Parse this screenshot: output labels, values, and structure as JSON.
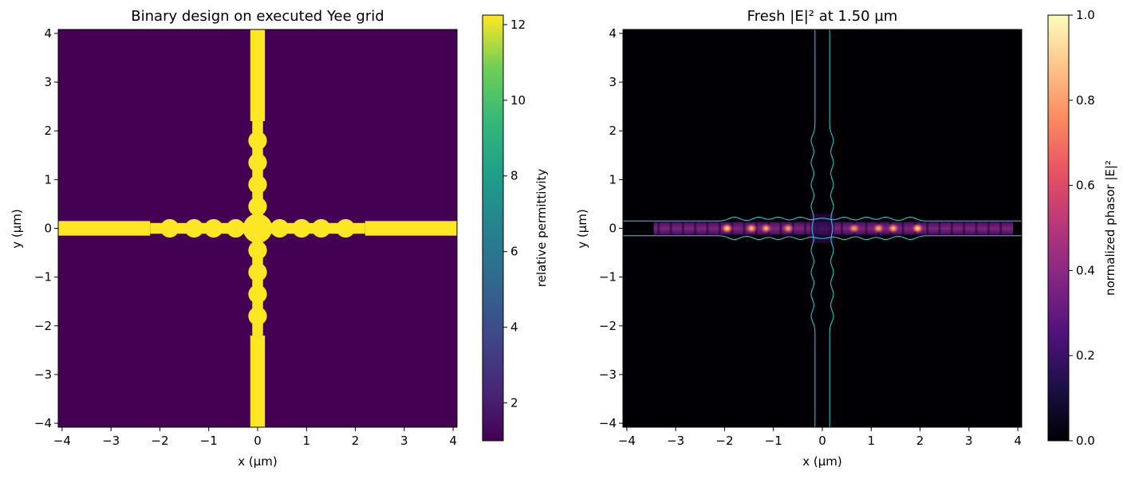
{
  "chart_data": [
    {
      "type": "heatmap",
      "title": "Binary design on executed Yee grid",
      "xlabel": "x (µm)",
      "ylabel": "y (µm)",
      "xlim": [
        -4.08,
        4.08
      ],
      "ylim": [
        -4.08,
        4.08
      ],
      "xticks": [
        -4,
        -3,
        -2,
        -1,
        0,
        1,
        2,
        3,
        4
      ],
      "yticks": [
        -4,
        -3,
        -2,
        -1,
        0,
        1,
        2,
        3,
        4
      ],
      "background_color": "#440154",
      "feature_color": "#fde725",
      "colorbar": {
        "label": "relative permittivity",
        "range": [
          1.0,
          12.25
        ],
        "ticks": [
          2,
          4,
          6,
          8,
          10,
          12
        ],
        "colormap": "viridis"
      },
      "structure": {
        "horizontal_bus_halfwidth": 0.15,
        "vertical_bus_halfwidth": 0.15,
        "straight_end": 2.2,
        "bumps_x": [
          -1.8,
          -1.3,
          -0.9,
          -0.45,
          0.45,
          0.9,
          1.3,
          1.8
        ],
        "bumps_y": [
          -1.8,
          -1.35,
          -0.9,
          -0.45,
          0.45,
          0.9,
          1.35,
          1.8
        ]
      }
    },
    {
      "type": "heatmap",
      "title": "Fresh |E|² at 1.50 µm",
      "xlabel": "x (µm)",
      "ylabel": "y (µm)",
      "xlim": [
        -4.08,
        4.08
      ],
      "ylim": [
        -4.08,
        4.08
      ],
      "xticks": [
        -4,
        -3,
        -2,
        -1,
        0,
        1,
        2,
        3,
        4
      ],
      "yticks": [
        -4,
        -3,
        -2,
        -1,
        0,
        1,
        2,
        3,
        4
      ],
      "background_color": "#000004",
      "outline_color": "#2fd3d3",
      "colorbar": {
        "label": "normalized phasor |E|²",
        "range": [
          0.0,
          1.0
        ],
        "ticks": [
          "0.0",
          "0.2",
          "0.4",
          "0.6",
          "0.8",
          "1.0"
        ],
        "colormap": "magma"
      },
      "field_band": {
        "x_range": [
          -3.45,
          3.9
        ],
        "y_halfwidth": 0.13
      },
      "hotspots": [
        {
          "x": -1.95,
          "intensity": 1.0
        },
        {
          "x": -1.45,
          "intensity": 0.85
        },
        {
          "x": -1.15,
          "intensity": 0.8
        },
        {
          "x": -0.7,
          "intensity": 0.75
        },
        {
          "x": 0.65,
          "intensity": 0.75
        },
        {
          "x": 1.15,
          "intensity": 0.8
        },
        {
          "x": 1.45,
          "intensity": 0.85
        },
        {
          "x": 1.95,
          "intensity": 1.0
        }
      ]
    }
  ]
}
